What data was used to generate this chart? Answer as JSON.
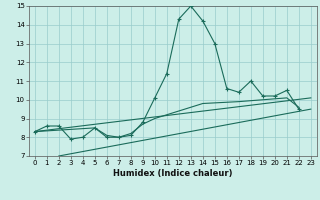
{
  "bg_color": "#cceee8",
  "grid_color": "#99cccc",
  "line_color": "#1a6b5a",
  "xlabel": "Humidex (Indice chaleur)",
  "xlim": [
    -0.5,
    23.5
  ],
  "ylim": [
    7,
    15
  ],
  "xticks": [
    0,
    1,
    2,
    3,
    4,
    5,
    6,
    7,
    8,
    9,
    10,
    11,
    12,
    13,
    14,
    15,
    16,
    17,
    18,
    19,
    20,
    21,
    22,
    23
  ],
  "yticks": [
    7,
    8,
    9,
    10,
    11,
    12,
    13,
    14,
    15
  ],
  "series": [
    {
      "x": [
        0,
        1,
        2,
        3,
        4,
        5,
        6,
        7,
        8,
        9,
        10,
        11,
        12,
        13,
        14,
        15,
        16,
        17,
        18,
        19,
        20,
        21,
        22
      ],
      "y": [
        8.3,
        8.6,
        8.6,
        7.9,
        8.0,
        8.5,
        8.0,
        8.0,
        8.1,
        8.8,
        10.1,
        11.4,
        14.3,
        15.0,
        14.2,
        13.0,
        10.6,
        10.4,
        11.0,
        10.2,
        10.2,
        10.5,
        9.5
      ],
      "marker": "+"
    },
    {
      "x": [
        0,
        23
      ],
      "y": [
        8.3,
        10.1
      ],
      "marker": null
    },
    {
      "x": [
        2,
        23
      ],
      "y": [
        7.0,
        9.5
      ],
      "marker": null
    },
    {
      "x": [
        0,
        5,
        6,
        7,
        8,
        9,
        10,
        11,
        12,
        13,
        14,
        17,
        18,
        19,
        20,
        21,
        22
      ],
      "y": [
        8.3,
        8.5,
        8.1,
        8.0,
        8.2,
        8.7,
        9.0,
        9.2,
        9.4,
        9.6,
        9.8,
        9.9,
        9.95,
        10.0,
        10.05,
        10.1,
        9.6
      ],
      "marker": null
    }
  ]
}
